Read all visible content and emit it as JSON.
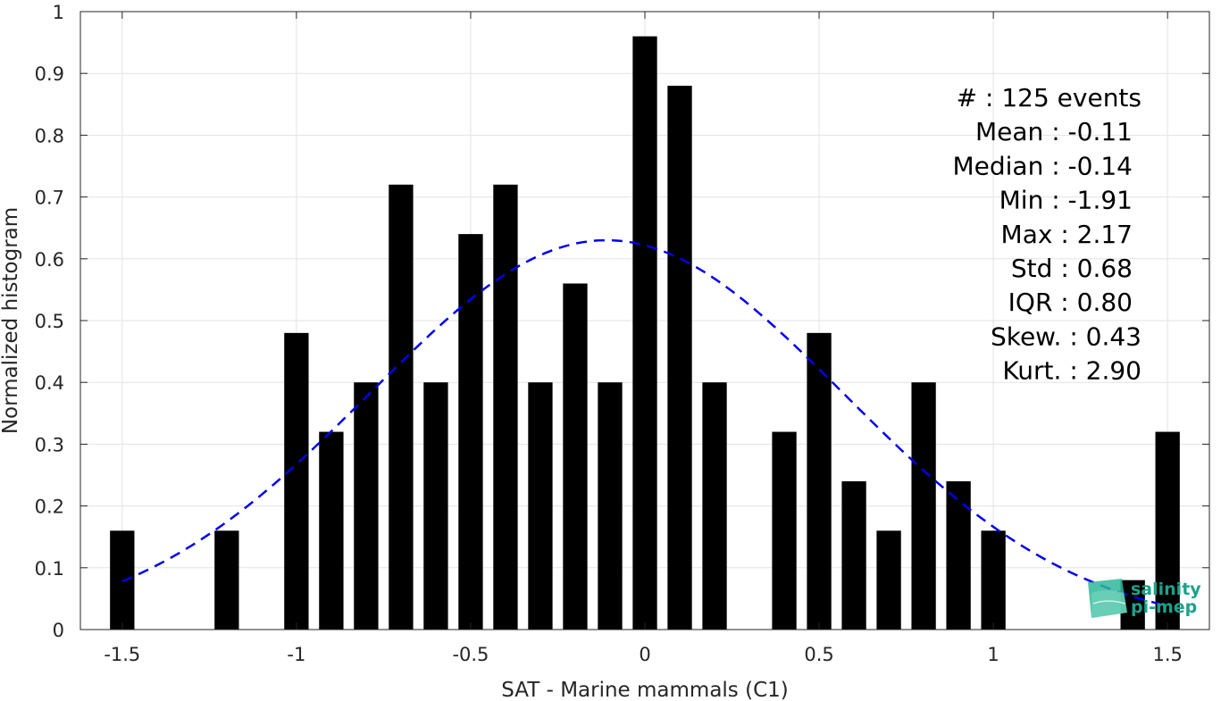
{
  "chart_data": {
    "type": "bar",
    "xlabel": "SAT - Marine mammals (C1)",
    "ylabel": "Normalized histogram",
    "xlim": [
      -1.62,
      1.62
    ],
    "ylim": [
      0,
      1
    ],
    "grid": true,
    "x_ticks": [
      -1.5,
      -1,
      -0.5,
      0,
      0.5,
      1,
      1.5
    ],
    "x_tick_labels": [
      "-1.5",
      "-1",
      "-0.5",
      "0",
      "0.5",
      "1",
      "1.5"
    ],
    "y_ticks": [
      0,
      0.1,
      0.2,
      0.3,
      0.4,
      0.5,
      0.6,
      0.7,
      0.8,
      0.9,
      1
    ],
    "y_tick_labels": [
      "0",
      "0.1",
      "0.2",
      "0.3",
      "0.4",
      "0.5",
      "0.6",
      "0.7",
      "0.8",
      "0.9",
      "1"
    ],
    "bar_width": 0.07,
    "bars": [
      {
        "x": -1.5,
        "y": 0.16
      },
      {
        "x": -1.2,
        "y": 0.16
      },
      {
        "x": -1.0,
        "y": 0.48
      },
      {
        "x": -0.9,
        "y": 0.32
      },
      {
        "x": -0.8,
        "y": 0.4
      },
      {
        "x": -0.7,
        "y": 0.72
      },
      {
        "x": -0.6,
        "y": 0.4
      },
      {
        "x": -0.5,
        "y": 0.64
      },
      {
        "x": -0.4,
        "y": 0.72
      },
      {
        "x": -0.3,
        "y": 0.4
      },
      {
        "x": -0.2,
        "y": 0.56
      },
      {
        "x": -0.1,
        "y": 0.4
      },
      {
        "x": 0.0,
        "y": 0.96
      },
      {
        "x": 0.1,
        "y": 0.88
      },
      {
        "x": 0.2,
        "y": 0.4
      },
      {
        "x": 0.4,
        "y": 0.32
      },
      {
        "x": 0.5,
        "y": 0.48
      },
      {
        "x": 0.6,
        "y": 0.24
      },
      {
        "x": 0.7,
        "y": 0.16
      },
      {
        "x": 0.8,
        "y": 0.4
      },
      {
        "x": 0.9,
        "y": 0.24
      },
      {
        "x": 1.0,
        "y": 0.16
      },
      {
        "x": 1.4,
        "y": 0.08
      },
      {
        "x": 1.5,
        "y": 0.32
      }
    ],
    "bar_color": "#000000",
    "fit_curve": {
      "style": "dashed",
      "color": "#0000ee",
      "mean": -0.11,
      "std": 0.68,
      "x_range": [
        -1.5,
        1.5
      ]
    },
    "stats_lines": [
      "#  : 125 events",
      "Mean : -0.11",
      "Median : -0.14",
      "Min : -1.91",
      "Max : 2.17",
      "Std : 0.68",
      "IQR : 0.80",
      "Skew. : 0.43",
      "Kurt. : 2.90"
    ]
  },
  "logo": {
    "line1": "salinity",
    "line2": "pi-mep",
    "text_color": "#1aa38a",
    "mark_color": "#2fb89a"
  }
}
